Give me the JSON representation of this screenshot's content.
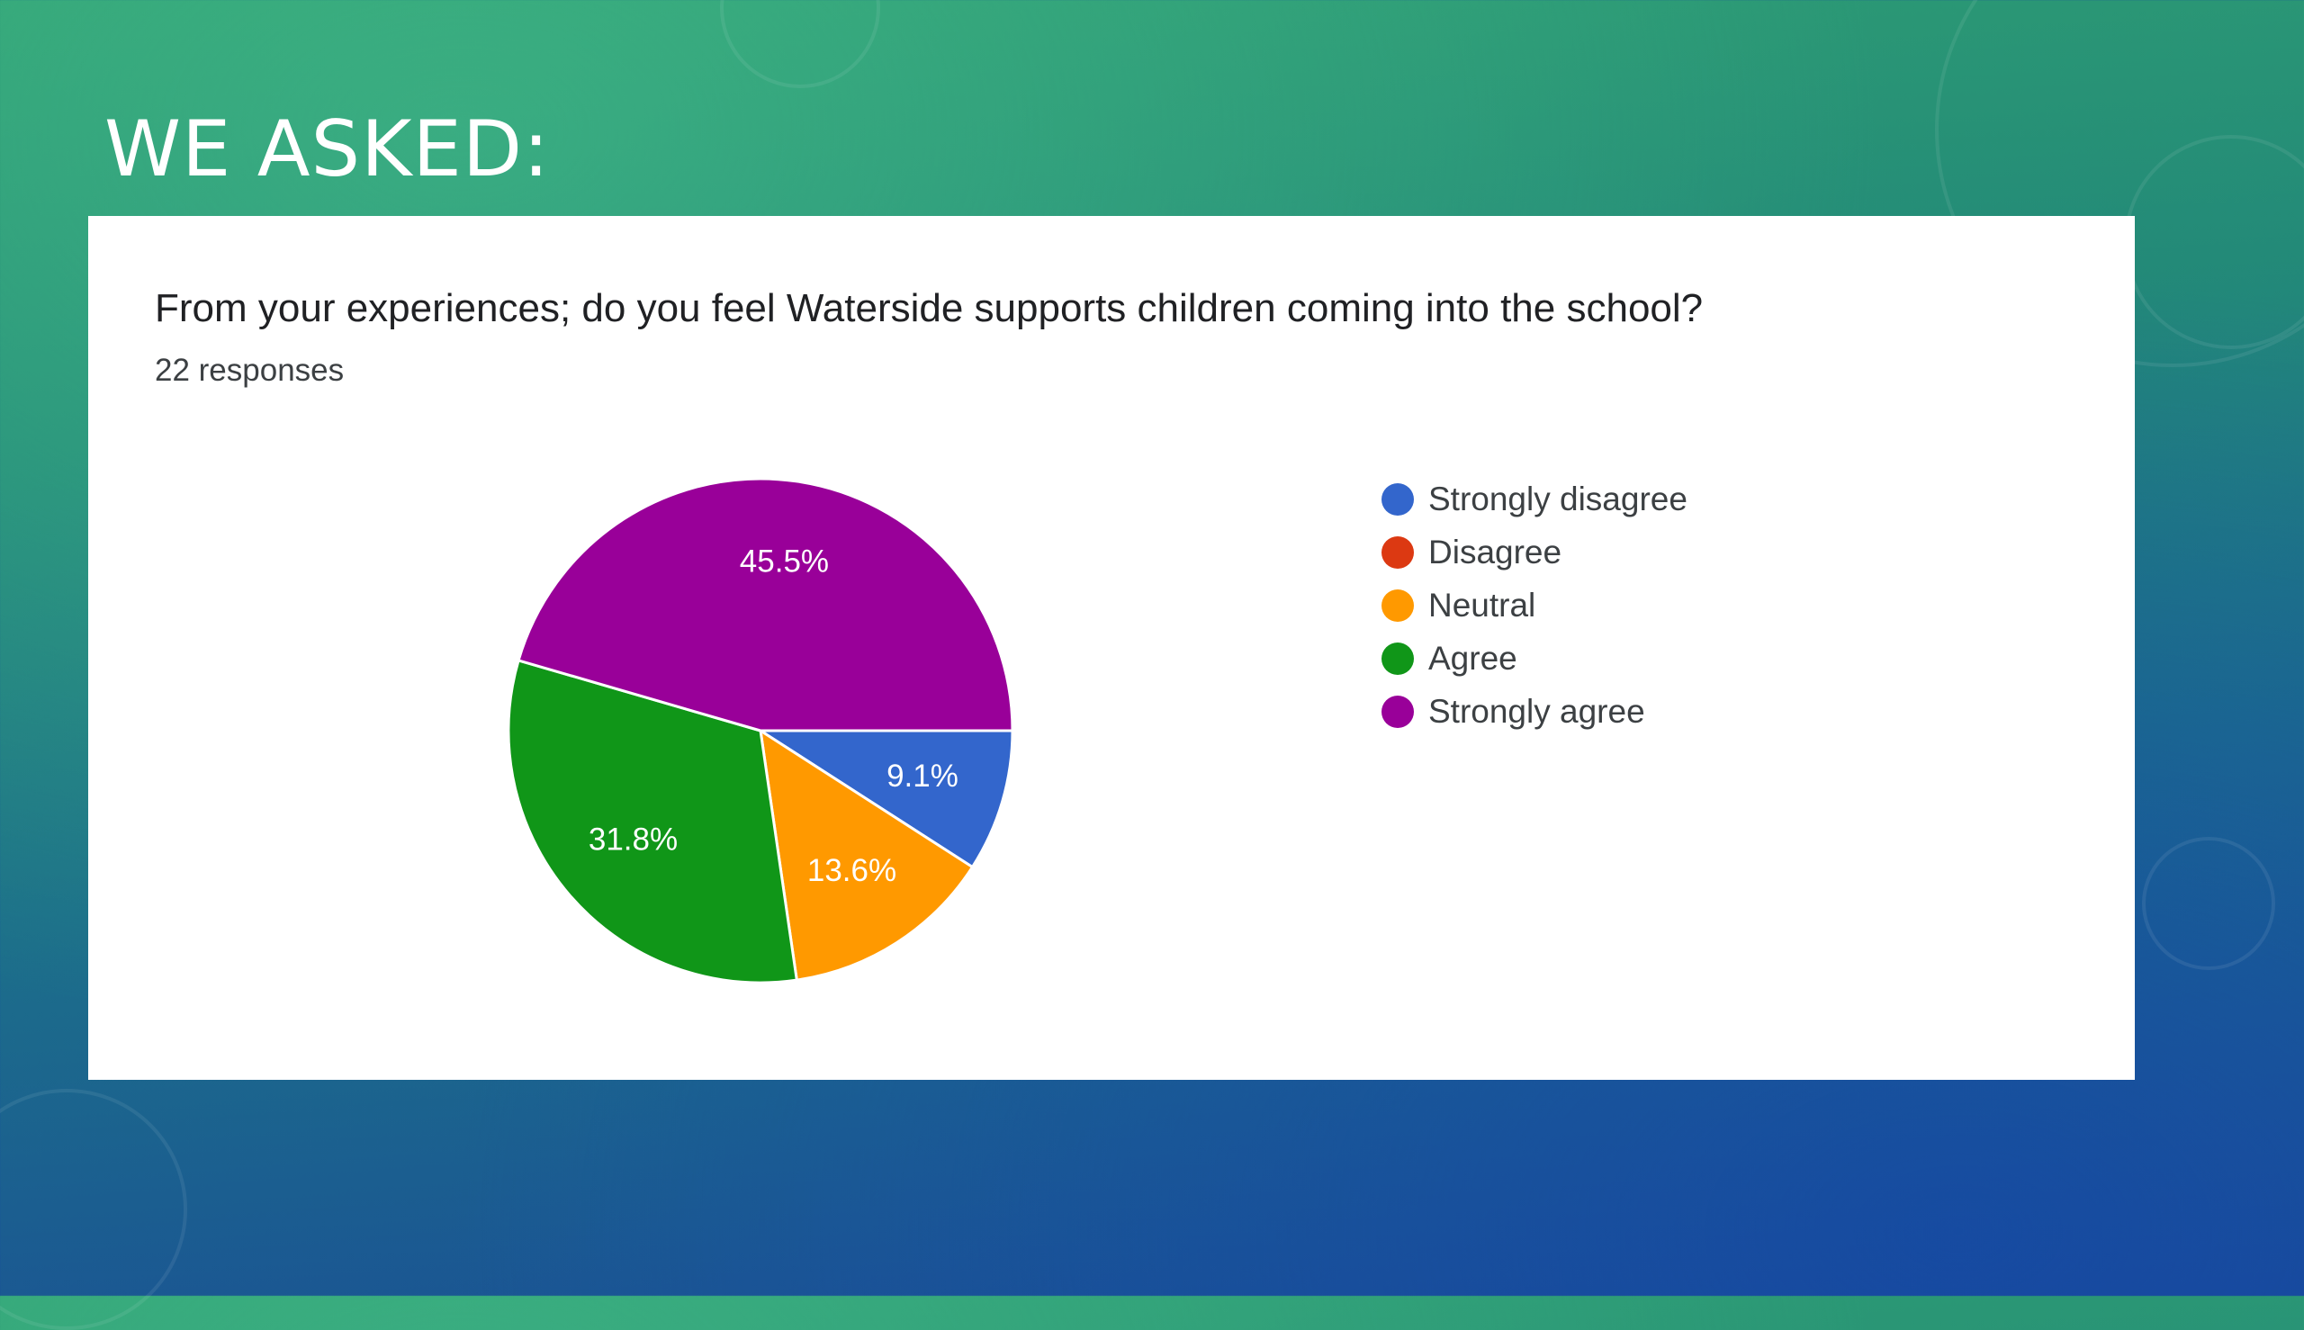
{
  "slide": {
    "title": "WE ASKED:"
  },
  "card": {
    "question": "From your experiences; do you feel Waterside supports children coming into the school?",
    "responses": "22 responses"
  },
  "chart_data": {
    "type": "pie",
    "categories": [
      "Strongly disagree",
      "Disagree",
      "Neutral",
      "Agree",
      "Strongly agree"
    ],
    "values": [
      9.1,
      0,
      13.6,
      31.8,
      45.5
    ],
    "labels": [
      "9.1%",
      "",
      "13.6%",
      "31.8%",
      "45.5%"
    ],
    "colors": [
      "#3366cc",
      "#dc3912",
      "#ff9900",
      "#109618",
      "#990099"
    ],
    "legend_position": "right",
    "start": "right, clockwise"
  }
}
